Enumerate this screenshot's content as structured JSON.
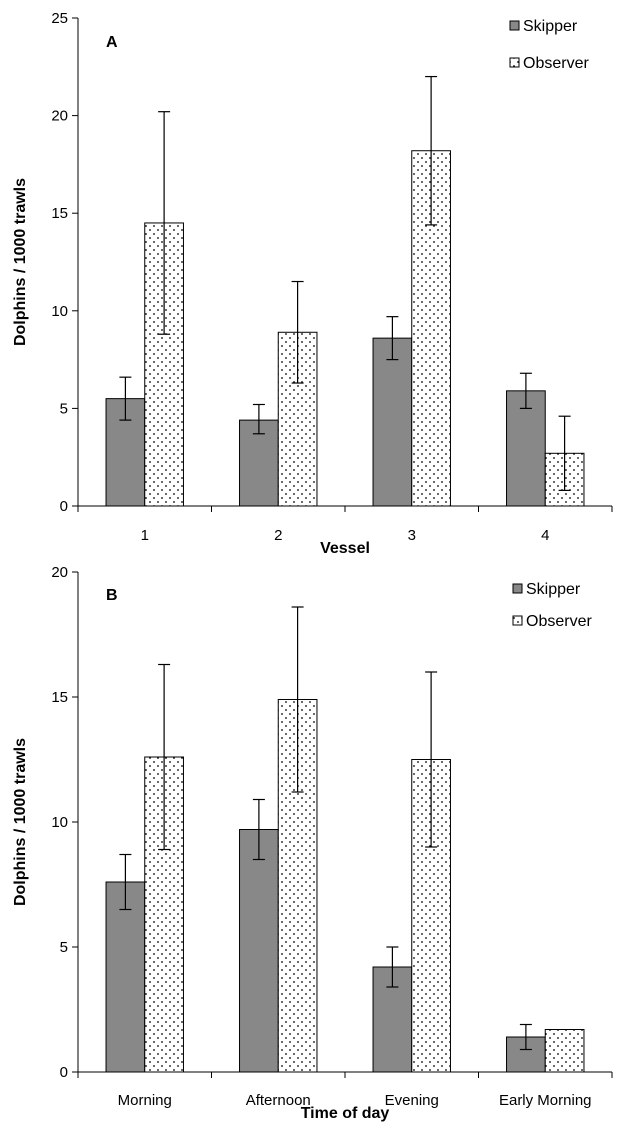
{
  "chart_data": [
    {
      "type": "bar",
      "panel_label": "A",
      "xlabel": "Vessel",
      "ylabel": "Dolphins / 1000 trawls",
      "categories": [
        "1",
        "2",
        "3",
        "4"
      ],
      "ylim": [
        0,
        25
      ],
      "yticks": [
        "0",
        "5",
        "10",
        "15",
        "20",
        "25"
      ],
      "legend_position": "top-right",
      "series": [
        {
          "name": "Skipper",
          "color": "#888888",
          "pattern": "solid",
          "values": [
            5.5,
            4.4,
            8.6,
            5.9
          ],
          "error_low": [
            4.4,
            3.7,
            7.5,
            5.0
          ],
          "error_high": [
            6.6,
            5.2,
            9.7,
            6.8
          ]
        },
        {
          "name": "Observer",
          "color": "#ffffff",
          "pattern": "dotted",
          "values": [
            14.5,
            8.9,
            18.2,
            2.7
          ],
          "error_low": [
            8.8,
            6.3,
            14.4,
            0.8
          ],
          "error_high": [
            20.2,
            11.5,
            22.0,
            4.6
          ]
        }
      ]
    },
    {
      "type": "bar",
      "panel_label": "B",
      "xlabel": "Time of day",
      "ylabel": "Dolphins / 1000 trawls",
      "categories": [
        "Morning",
        "Afternoon",
        "Evening",
        "Early Morning"
      ],
      "ylim": [
        0,
        20
      ],
      "yticks": [
        "0",
        "5",
        "10",
        "15",
        "20"
      ],
      "legend_position": "top-right",
      "series": [
        {
          "name": "Skipper",
          "color": "#888888",
          "pattern": "solid",
          "values": [
            7.6,
            9.7,
            4.2,
            1.4
          ],
          "error_low": [
            6.5,
            8.5,
            3.4,
            0.9
          ],
          "error_high": [
            8.7,
            10.9,
            5.0,
            1.9
          ]
        },
        {
          "name": "Observer",
          "color": "#ffffff",
          "pattern": "dotted",
          "values": [
            12.6,
            14.9,
            12.5,
            1.7
          ],
          "error_low": [
            8.9,
            11.2,
            9.0,
            null
          ],
          "error_high": [
            16.3,
            18.6,
            16.0,
            null
          ]
        }
      ]
    }
  ]
}
